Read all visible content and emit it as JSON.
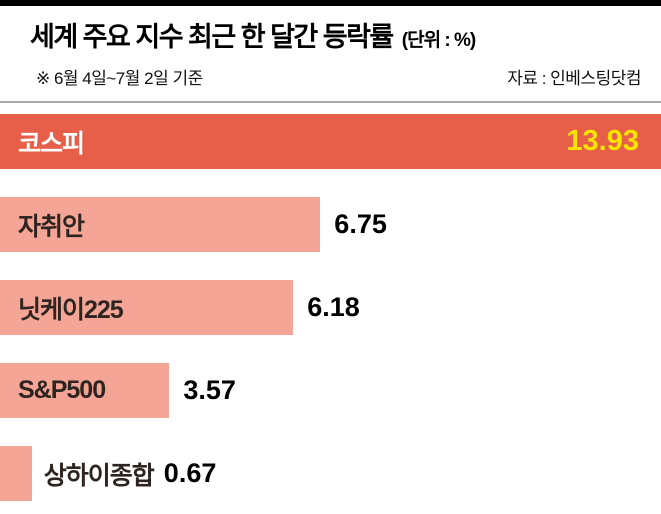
{
  "header": {
    "title": "세계 주요 지수 최근 한 달간 등락률",
    "unit_label": "(단위 : %)",
    "period_note": "※ 6월 4일~7월 2일 기준",
    "source_label": "자료 : 인베스팅닷컴"
  },
  "chart_data": {
    "type": "bar",
    "orientation": "horizontal",
    "title": "세계 주요 지수 최근 한 달간 등락률",
    "unit": "%",
    "categories": [
      "코스피",
      "자취안",
      "닛케이225",
      "S&P500",
      "상하이종합"
    ],
    "values": [
      13.93,
      6.75,
      6.18,
      3.57,
      0.67
    ],
    "value_labels": [
      "13.93",
      "6.75",
      "6.18",
      "3.57",
      "0.67"
    ],
    "xlim": [
      0,
      13.93
    ],
    "highlight_index": 0,
    "label_outside_index": 4,
    "grid": false,
    "legend": false,
    "colors": {
      "highlight_bar": "#e85f49",
      "bar": "#f4a596",
      "highlight_label_text": "#ffffff",
      "highlight_value_text": "#f6e400",
      "bar_label_text": "#2e2420",
      "value_text": "#000000"
    }
  }
}
